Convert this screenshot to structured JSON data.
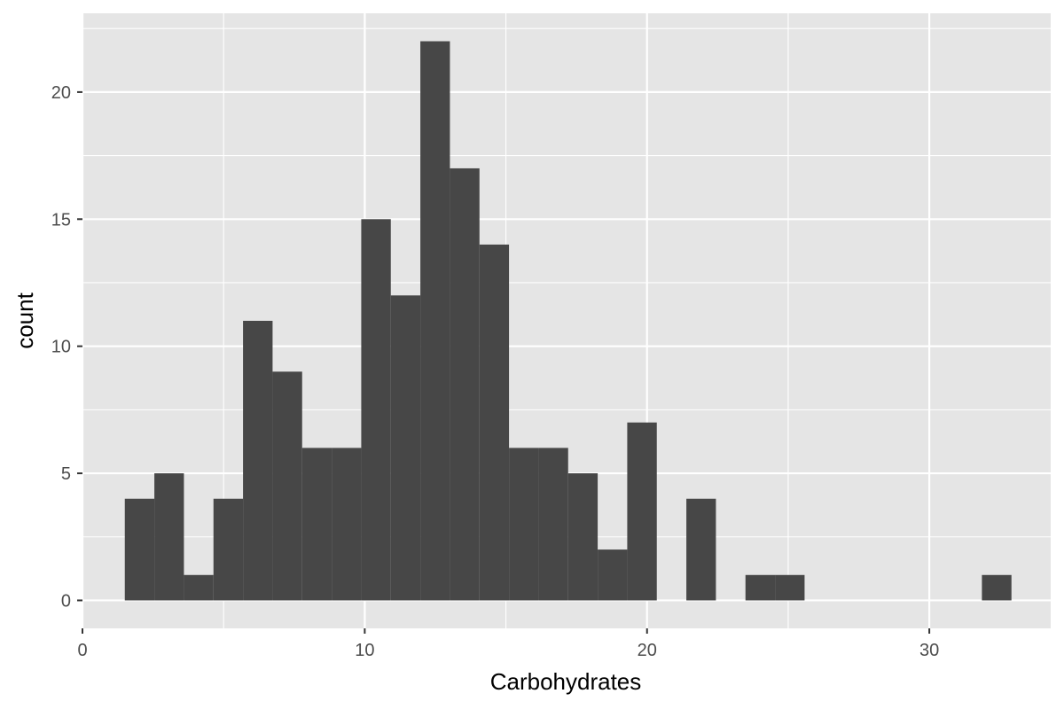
{
  "chart_data": {
    "type": "bar",
    "xlabel": "Carbohydrates",
    "ylabel": "count",
    "xlim": [
      0,
      34.3
    ],
    "ylim": [
      -1.1,
      23.1
    ],
    "x_ticks": [
      0,
      10,
      20,
      30
    ],
    "y_ticks": [
      0,
      5,
      10,
      15,
      20
    ],
    "x_minor_gridlines": [
      5,
      15,
      25
    ],
    "y_minor_gridlines": [
      2.5,
      7.5,
      12.5,
      17.5,
      22.5
    ],
    "grid": true,
    "bin_width": 1.047,
    "bins": [
      {
        "x0": 1.5,
        "count": 4
      },
      {
        "x0": 2.547,
        "count": 5
      },
      {
        "x0": 3.594,
        "count": 1
      },
      {
        "x0": 4.641,
        "count": 4
      },
      {
        "x0": 5.688,
        "count": 11
      },
      {
        "x0": 6.735,
        "count": 9
      },
      {
        "x0": 7.782,
        "count": 6
      },
      {
        "x0": 8.829,
        "count": 6
      },
      {
        "x0": 9.876,
        "count": 15
      },
      {
        "x0": 10.923,
        "count": 12
      },
      {
        "x0": 11.97,
        "count": 22
      },
      {
        "x0": 13.017,
        "count": 17
      },
      {
        "x0": 14.064,
        "count": 14
      },
      {
        "x0": 15.111,
        "count": 6
      },
      {
        "x0": 16.158,
        "count": 6
      },
      {
        "x0": 17.205,
        "count": 5
      },
      {
        "x0": 18.252,
        "count": 2
      },
      {
        "x0": 19.299,
        "count": 7
      },
      {
        "x0": 20.346,
        "count": 0
      },
      {
        "x0": 21.393,
        "count": 4
      },
      {
        "x0": 22.44,
        "count": 0
      },
      {
        "x0": 23.487,
        "count": 1
      },
      {
        "x0": 24.534,
        "count": 1
      },
      {
        "x0": 25.581,
        "count": 0
      },
      {
        "x0": 26.628,
        "count": 0
      },
      {
        "x0": 27.675,
        "count": 0
      },
      {
        "x0": 28.722,
        "count": 0
      },
      {
        "x0": 29.769,
        "count": 0
      },
      {
        "x0": 30.816,
        "count": 0
      },
      {
        "x0": 31.863,
        "count": 1
      }
    ],
    "colors": {
      "panel_background": "#e5e5e5",
      "grid_major": "#ffffff",
      "bar_fill": "#474747",
      "tick_text": "#4d4d4d",
      "tick_mark": "#333333"
    }
  }
}
